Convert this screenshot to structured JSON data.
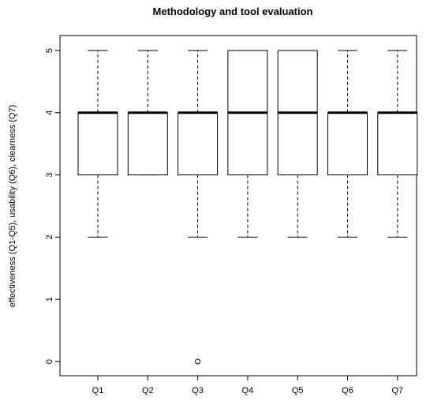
{
  "chart_data": {
    "type": "boxplot",
    "title": "Methodology and tool evaluation",
    "xlabel": "",
    "ylabel": "effectiveness (Q1-Q5), usability (Q6), clearness (Q7)",
    "ylim": [
      0,
      5
    ],
    "yticks": [
      "0",
      "1",
      "2",
      "3",
      "4",
      "5"
    ],
    "grid": false,
    "categories": [
      "Q1",
      "Q2",
      "Q3",
      "Q4",
      "Q5",
      "Q6",
      "Q7"
    ],
    "boxes": [
      {
        "whisker_low": 2,
        "q1": 3,
        "median": 4,
        "q3": 4,
        "whisker_high": 5,
        "outliers": []
      },
      {
        "whisker_low": 3,
        "q1": 3,
        "median": 4,
        "q3": 4,
        "whisker_high": 5,
        "outliers": []
      },
      {
        "whisker_low": 2,
        "q1": 3,
        "median": 4,
        "q3": 4,
        "whisker_high": 5,
        "outliers": [
          0
        ]
      },
      {
        "whisker_low": 2,
        "q1": 3,
        "median": 4,
        "q3": 5,
        "whisker_high": 5,
        "outliers": []
      },
      {
        "whisker_low": 2,
        "q1": 3,
        "median": 4,
        "q3": 5,
        "whisker_high": 5,
        "outliers": []
      },
      {
        "whisker_low": 2,
        "q1": 3,
        "median": 4,
        "q3": 4,
        "whisker_high": 5,
        "outliers": []
      },
      {
        "whisker_low": 2,
        "q1": 3,
        "median": 4,
        "q3": 4,
        "whisker_high": 5,
        "outliers": []
      }
    ]
  }
}
